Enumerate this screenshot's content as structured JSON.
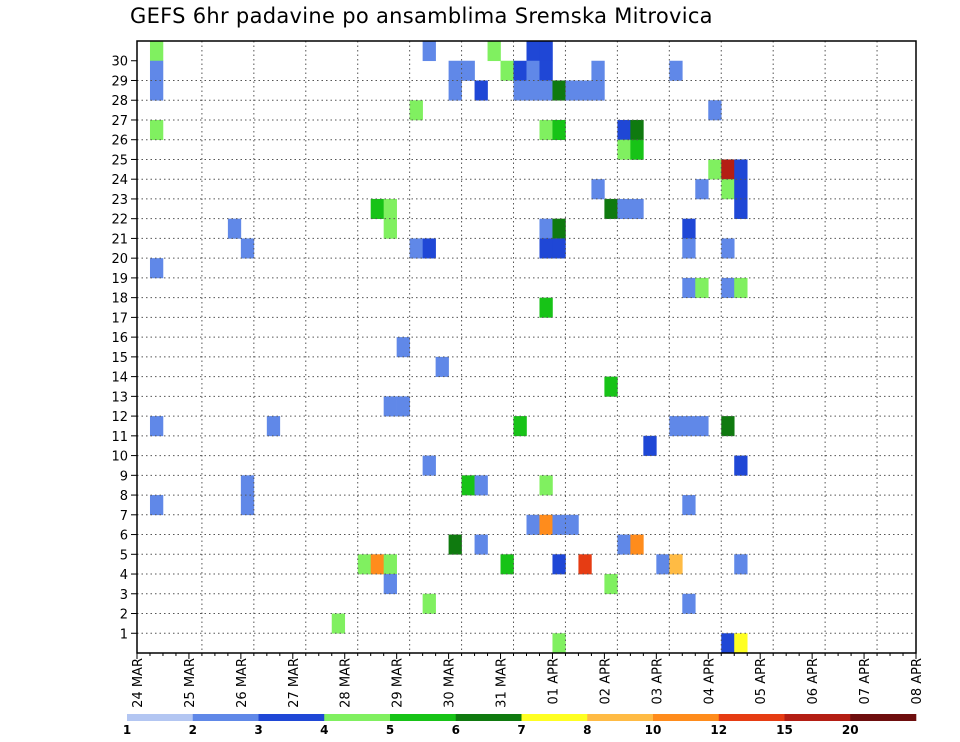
{
  "chart_data": {
    "type": "heatmap",
    "title": "GEFS 6hr padavine po ansamblima Sremska Mitrovica",
    "x_tick_labels": [
      "24 MAR",
      "25 MAR",
      "26 MAR",
      "27 MAR",
      "28 MAR",
      "29 MAR",
      "30 MAR",
      "31 MAR",
      "01 APR",
      "02 APR",
      "03 APR",
      "04 APR",
      "05 APR",
      "06 APR",
      "07 APR",
      "08 APR"
    ],
    "y_tick_labels": [
      "1",
      "2",
      "3",
      "4",
      "5",
      "6",
      "7",
      "8",
      "9",
      "10",
      "11",
      "12",
      "13",
      "14",
      "15",
      "16",
      "17",
      "18",
      "19",
      "20",
      "21",
      "22",
      "23",
      "24",
      "25",
      "26",
      "27",
      "28",
      "29",
      "30"
    ],
    "members": [
      0,
      30
    ],
    "time_steps": 60,
    "steps_per_day": 4,
    "grid": true,
    "colorbar_labels": [
      "1",
      "2",
      "3",
      "4",
      "5",
      "6",
      "7",
      "8",
      "10",
      "12",
      "15",
      "20"
    ],
    "colorbar_colors": [
      "#b3c6f2",
      "#6088e8",
      "#1f47d6",
      "#80f060",
      "#17c317",
      "#0f7a0f",
      "#ffff22",
      "#ffbb44",
      "#ff8c1c",
      "#e63c13",
      "#b41e14",
      "#6e0e0e"
    ],
    "cells": [
      [
        1,
        30,
        3
      ],
      [
        1,
        29,
        1
      ],
      [
        1,
        28,
        1
      ],
      [
        1,
        26,
        3
      ],
      [
        1,
        19,
        1
      ],
      [
        1,
        11,
        1
      ],
      [
        1,
        7,
        1
      ],
      [
        7,
        21,
        1
      ],
      [
        8,
        20,
        1
      ],
      [
        8,
        8,
        1
      ],
      [
        8,
        7,
        1
      ],
      [
        10,
        11,
        1
      ],
      [
        15,
        1,
        3
      ],
      [
        17,
        4,
        3
      ],
      [
        18,
        4,
        8
      ],
      [
        18,
        22,
        4
      ],
      [
        19,
        22,
        3
      ],
      [
        19,
        21,
        3
      ],
      [
        19,
        4,
        3
      ],
      [
        19,
        3,
        1
      ],
      [
        19,
        12,
        1
      ],
      [
        20,
        12,
        1
      ],
      [
        20,
        15,
        1
      ],
      [
        21,
        27,
        3
      ],
      [
        21,
        20,
        1
      ],
      [
        22,
        30,
        1
      ],
      [
        22,
        20,
        2
      ],
      [
        22,
        9,
        1
      ],
      [
        22,
        2,
        3
      ],
      [
        23,
        14,
        1
      ],
      [
        24,
        29,
        1
      ],
      [
        24,
        28,
        1
      ],
      [
        24,
        5,
        5
      ],
      [
        25,
        29,
        1
      ],
      [
        25,
        8,
        4
      ],
      [
        26,
        28,
        2
      ],
      [
        26,
        8,
        1
      ],
      [
        26,
        5,
        1
      ],
      [
        27,
        30,
        3
      ],
      [
        28,
        29,
        3
      ],
      [
        29,
        29,
        2
      ],
      [
        29,
        28,
        1
      ],
      [
        28,
        4,
        4
      ],
      [
        29,
        11,
        4
      ],
      [
        30,
        30,
        2
      ],
      [
        30,
        29,
        1
      ],
      [
        30,
        28,
        1
      ],
      [
        30,
        6,
        1
      ],
      [
        31,
        30,
        2
      ],
      [
        31,
        29,
        2
      ],
      [
        31,
        28,
        1
      ],
      [
        31,
        26,
        3
      ],
      [
        31,
        21,
        1
      ],
      [
        31,
        20,
        2
      ],
      [
        31,
        17,
        4
      ],
      [
        31,
        8,
        3
      ],
      [
        31,
        6,
        8
      ],
      [
        32,
        28,
        5
      ],
      [
        32,
        26,
        4
      ],
      [
        32,
        21,
        5
      ],
      [
        32,
        20,
        2
      ],
      [
        32,
        6,
        1
      ],
      [
        32,
        4,
        2
      ],
      [
        32,
        0,
        3
      ],
      [
        33,
        28,
        1
      ],
      [
        33,
        6,
        1
      ],
      [
        34,
        28,
        1
      ],
      [
        34,
        4,
        9
      ],
      [
        35,
        29,
        1
      ],
      [
        35,
        28,
        1
      ],
      [
        35,
        23,
        1
      ],
      [
        36,
        22,
        5
      ],
      [
        36,
        13,
        4
      ],
      [
        36,
        3,
        3
      ],
      [
        37,
        26,
        2
      ],
      [
        37,
        25,
        3
      ],
      [
        37,
        22,
        1
      ],
      [
        37,
        5,
        1
      ],
      [
        38,
        26,
        5
      ],
      [
        38,
        25,
        4
      ],
      [
        38,
        22,
        1
      ],
      [
        38,
        5,
        8
      ],
      [
        39,
        10,
        2
      ],
      [
        40,
        4,
        1
      ],
      [
        41,
        29,
        1
      ],
      [
        41,
        11,
        1
      ],
      [
        41,
        4,
        7
      ],
      [
        42,
        21,
        2
      ],
      [
        42,
        20,
        1
      ],
      [
        42,
        18,
        1
      ],
      [
        42,
        11,
        1
      ],
      [
        42,
        7,
        1
      ],
      [
        42,
        2,
        1
      ],
      [
        43,
        23,
        1
      ],
      [
        43,
        18,
        3
      ],
      [
        43,
        11,
        1
      ],
      [
        44,
        27,
        1
      ],
      [
        44,
        24,
        3
      ],
      [
        45,
        24,
        10
      ],
      [
        45,
        23,
        3
      ],
      [
        45,
        18,
        1
      ],
      [
        45,
        11,
        5
      ],
      [
        45,
        20,
        1
      ],
      [
        45,
        0,
        2
      ],
      [
        46,
        24,
        2
      ],
      [
        46,
        23,
        2
      ],
      [
        46,
        22,
        2
      ],
      [
        46,
        18,
        3
      ],
      [
        46,
        9,
        2
      ],
      [
        46,
        4,
        1
      ],
      [
        46,
        0,
        6
      ]
    ]
  }
}
